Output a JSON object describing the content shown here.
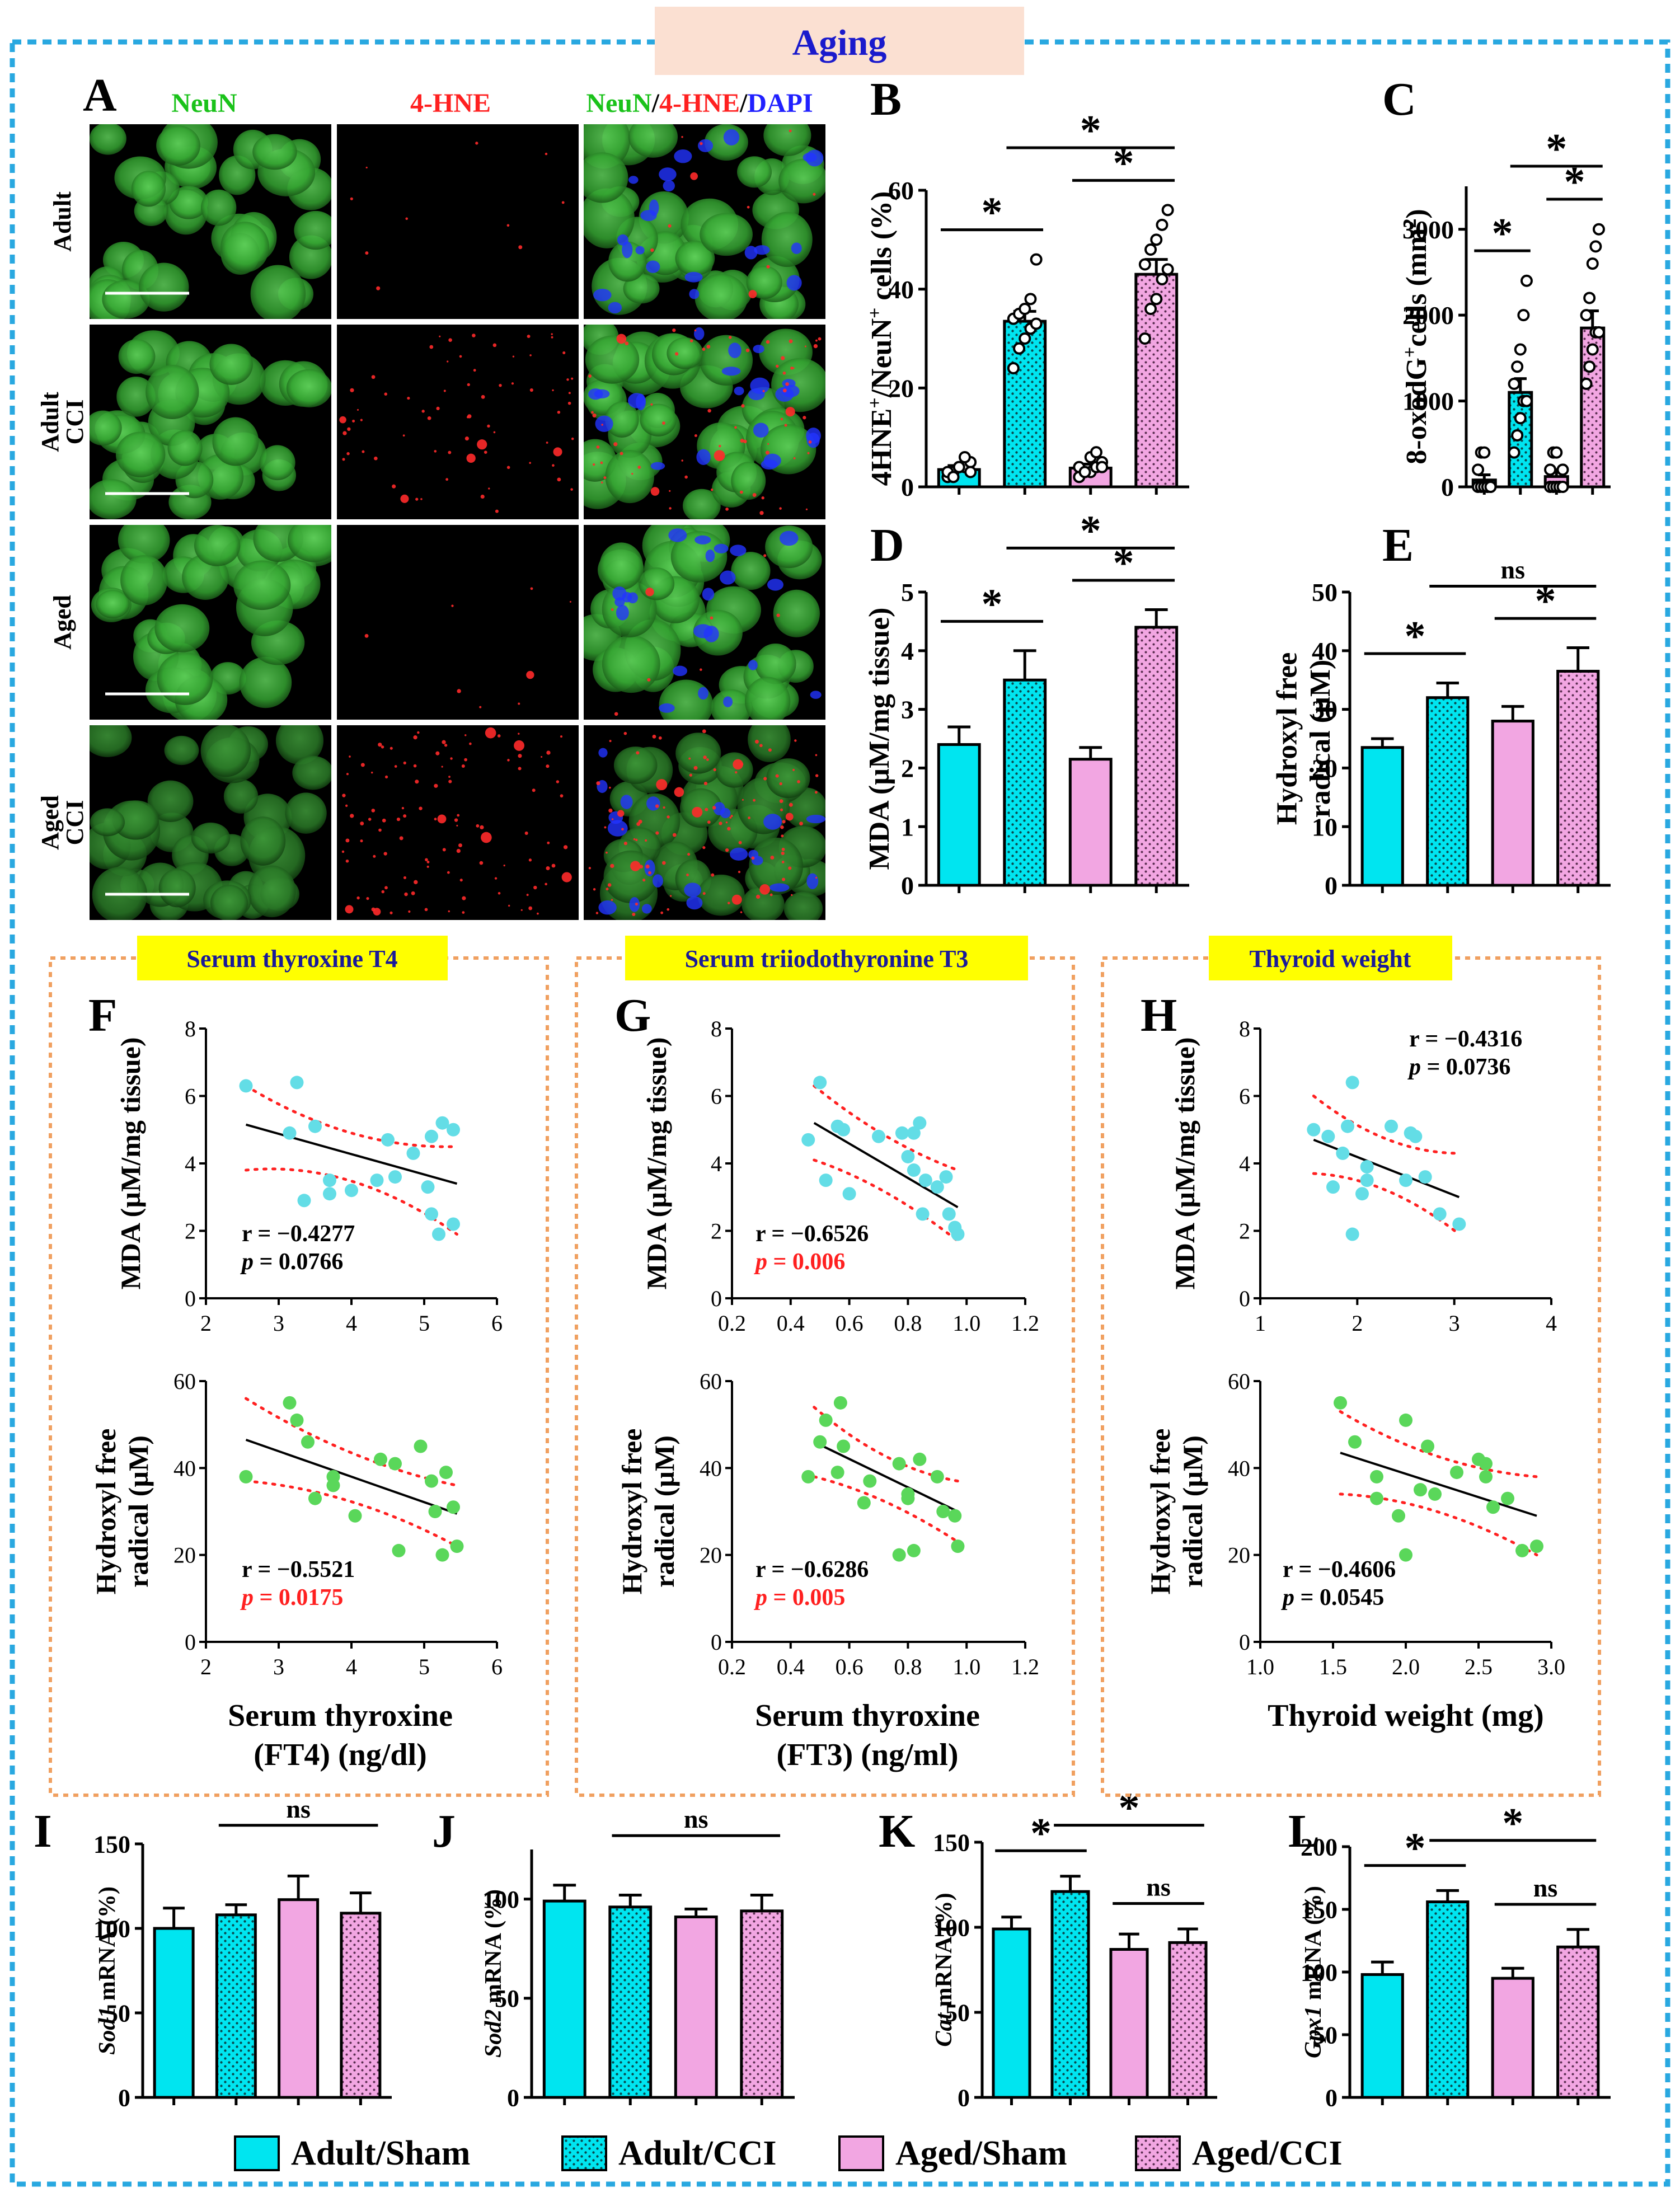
{
  "title": "Aging",
  "colors": {
    "frame": "#29a8e0",
    "title_bg": "#fbe0d2",
    "title_text": "#1a1acc",
    "cyan": "#00e5f0",
    "pink": "#f2a6e2",
    "green": "#1ac21a",
    "red": "#ff2020",
    "blue": "#2020ff",
    "orange": "#f0a060",
    "yellow": "#ffff00",
    "navy": "#1a1a99",
    "scatter_cyan": "#63dde6",
    "scatter_green": "#5ad75a",
    "sig_red": "#ff2020"
  },
  "micrograph": {
    "panel_label": "A",
    "columns": [
      "NeuN",
      "4-HNE",
      "NeuN/4-HNE/DAPI"
    ],
    "merged_parts": [
      "NeuN",
      "/",
      "4-HNE",
      "/",
      "DAPI"
    ],
    "rows": [
      "Adult",
      "Adult CCI",
      "Aged",
      "Aged CCI"
    ]
  },
  "legend": [
    "Adult/Sham",
    "Adult/CCI",
    "Aged/Sham",
    "Aged/CCI"
  ],
  "group_titles": [
    "Serum thyroxine T4",
    "Serum triiodothyronine T3",
    "Thyroid weight"
  ],
  "chart_data": [
    {
      "id": "B",
      "type": "bar",
      "ylabel_parts": [
        "4HNE",
        "+",
        "/NeuN",
        "+",
        " cells (%)"
      ],
      "categories": [
        "Adult/Sham",
        "Adult/CCI",
        "Aged/Sham",
        "Aged/CCI"
      ],
      "values": [
        3.5,
        33.5,
        3.8,
        43
      ],
      "errors": [
        0.8,
        2,
        0.8,
        3
      ],
      "ylim": [
        0,
        60
      ],
      "yticks": [
        0,
        20,
        40,
        60
      ],
      "points": [
        [
          2,
          3,
          4,
          4,
          5,
          3,
          2,
          4,
          6,
          3
        ],
        [
          24,
          28,
          30,
          32,
          33,
          34,
          35,
          36,
          38,
          46
        ],
        [
          2,
          3,
          3,
          4,
          5,
          4,
          3,
          6,
          7,
          4
        ],
        [
          30,
          36,
          38,
          42,
          44,
          45,
          48,
          50,
          53,
          56
        ]
      ],
      "sig": [
        {
          "from": 0,
          "to": 1,
          "label": "*"
        },
        {
          "from": 2,
          "to": 3,
          "label": "*"
        },
        {
          "from": 1,
          "to": 3,
          "label": "*"
        }
      ]
    },
    {
      "id": "C",
      "type": "bar",
      "ylabel_parts": [
        "8-oxodG",
        "+",
        "cells (mm",
        "2",
        ")"
      ],
      "categories": [
        "Adult/Sham",
        "Adult/CCI",
        "Aged/Sham",
        "Aged/CCI"
      ],
      "values": [
        80,
        1100,
        120,
        1850
      ],
      "errors": [
        60,
        160,
        80,
        200
      ],
      "ylim": [
        0,
        3500
      ],
      "yticks": [
        0,
        1000,
        2000,
        3000
      ],
      "points": [
        [
          0,
          0,
          0,
          0,
          0,
          200,
          400,
          400,
          0,
          0
        ],
        [
          400,
          600,
          800,
          1000,
          1000,
          1200,
          1400,
          1600,
          2000,
          2400
        ],
        [
          0,
          0,
          0,
          0,
          200,
          200,
          400,
          400,
          0,
          0
        ],
        [
          1200,
          1400,
          1600,
          1800,
          1800,
          2000,
          2200,
          2600,
          2800,
          3000
        ]
      ],
      "sig": [
        {
          "from": 0,
          "to": 1,
          "label": "*"
        },
        {
          "from": 2,
          "to": 3,
          "label": "*"
        },
        {
          "from": 1,
          "to": 3,
          "label": "*"
        }
      ]
    },
    {
      "id": "D",
      "type": "bar",
      "ylabel": "MDA (µM/mg tissue)",
      "categories": [
        "Adult/Sham",
        "Adult/CCI",
        "Aged/Sham",
        "Aged/CCI"
      ],
      "values": [
        2.4,
        3.5,
        2.15,
        4.4
      ],
      "errors": [
        0.3,
        0.5,
        0.2,
        0.3
      ],
      "ylim": [
        0,
        5
      ],
      "yticks": [
        0,
        1,
        2,
        3,
        4,
        5
      ],
      "sig": [
        {
          "from": 0,
          "to": 1,
          "label": "*"
        },
        {
          "from": 2,
          "to": 3,
          "label": "*"
        },
        {
          "from": 1,
          "to": 3,
          "label": "*"
        }
      ]
    },
    {
      "id": "E",
      "type": "bar",
      "ylabel_lines": [
        "Hydroxyl free",
        "radical (µM)"
      ],
      "categories": [
        "Adult/Sham",
        "Adult/CCI",
        "Aged/Sham",
        "Aged/CCI"
      ],
      "values": [
        23.5,
        32,
        28,
        36.5
      ],
      "errors": [
        1.5,
        2.5,
        2.5,
        4
      ],
      "ylim": [
        0,
        50
      ],
      "yticks": [
        0,
        10,
        20,
        30,
        40,
        50
      ],
      "sig": [
        {
          "from": 0,
          "to": 1,
          "label": "*"
        },
        {
          "from": 2,
          "to": 3,
          "label": "*"
        },
        {
          "from": 1,
          "to": 3,
          "label": "ns"
        }
      ]
    },
    {
      "id": "F",
      "type": "scatter",
      "ylabel": "MDA (µM/mg tissue)",
      "xlim": [
        2,
        6
      ],
      "xticks": [
        2,
        3,
        4,
        5,
        6
      ],
      "ylim": [
        0,
        8
      ],
      "yticks": [
        0,
        2,
        4,
        6,
        8
      ],
      "points": [
        [
          2.55,
          6.3
        ],
        [
          3.25,
          6.4
        ],
        [
          3.5,
          5.1
        ],
        [
          3.15,
          4.9
        ],
        [
          3.35,
          2.9
        ],
        [
          3.7,
          3.5
        ],
        [
          3.7,
          3.1
        ],
        [
          4.0,
          3.2
        ],
        [
          4.35,
          3.5
        ],
        [
          4.5,
          4.7
        ],
        [
          4.6,
          3.6
        ],
        [
          4.85,
          4.3
        ],
        [
          5.1,
          4.8
        ],
        [
          5.25,
          5.2
        ],
        [
          5.4,
          5.0
        ],
        [
          5.05,
          3.3
        ],
        [
          5.1,
          2.5
        ],
        [
          5.2,
          1.9
        ],
        [
          5.4,
          2.2
        ]
      ],
      "fit": [
        [
          2.55,
          5.15
        ],
        [
          5.45,
          3.4
        ]
      ],
      "ci_upper": [
        [
          2.55,
          6.3
        ],
        [
          4.0,
          4.4
        ],
        [
          5.45,
          4.5
        ]
      ],
      "ci_lower": [
        [
          2.55,
          3.8
        ],
        [
          4.0,
          4.1
        ],
        [
          5.45,
          1.9
        ]
      ],
      "r": "r = −0.4277",
      "p": "p = 0.0766",
      "p_sig": false
    },
    {
      "id": "F2",
      "type": "scatter",
      "ylabel_lines": [
        "Hydroxyl free",
        "radical (µM)"
      ],
      "xlabel_lines": [
        "Serum thyroxine",
        "(FT4) (ng/dl)"
      ],
      "xlim": [
        2,
        6
      ],
      "xticks": [
        2,
        3,
        4,
        5,
        6
      ],
      "ylim": [
        0,
        60
      ],
      "yticks": [
        0,
        20,
        40,
        60
      ],
      "points": [
        [
          2.55,
          38
        ],
        [
          3.15,
          55
        ],
        [
          3.25,
          51
        ],
        [
          3.4,
          46
        ],
        [
          3.5,
          33
        ],
        [
          3.75,
          36
        ],
        [
          3.75,
          38
        ],
        [
          4.05,
          29
        ],
        [
          4.4,
          42
        ],
        [
          4.6,
          41
        ],
        [
          4.65,
          21
        ],
        [
          4.95,
          45
        ],
        [
          5.1,
          37
        ],
        [
          5.15,
          30
        ],
        [
          5.3,
          39
        ],
        [
          5.4,
          31
        ],
        [
          5.25,
          20
        ],
        [
          5.45,
          22
        ]
      ],
      "fit": [
        [
          2.55,
          46.5
        ],
        [
          5.45,
          29.5
        ]
      ],
      "ci_upper": [
        [
          2.55,
          56
        ],
        [
          4.0,
          41
        ],
        [
          5.45,
          36
        ]
      ],
      "ci_lower": [
        [
          2.55,
          37
        ],
        [
          4.0,
          35
        ],
        [
          5.45,
          22
        ]
      ],
      "r": "r = −0.5521",
      "p": "p = 0.0175",
      "p_sig": true
    },
    {
      "id": "G",
      "type": "scatter",
      "ylabel": "MDA (µM/mg tissue)",
      "xlim": [
        0.2,
        1.2
      ],
      "xticks": [
        0.2,
        0.4,
        0.6,
        0.8,
        1.0,
        1.2
      ],
      "ylim": [
        0,
        8
      ],
      "yticks": [
        0,
        2,
        4,
        6,
        8
      ],
      "points": [
        [
          0.5,
          6.4
        ],
        [
          0.56,
          5.1
        ],
        [
          0.58,
          5.0
        ],
        [
          0.46,
          4.7
        ],
        [
          0.52,
          3.5
        ],
        [
          0.6,
          3.1
        ],
        [
          0.7,
          4.8
        ],
        [
          0.78,
          4.9
        ],
        [
          0.82,
          4.9
        ],
        [
          0.84,
          5.2
        ],
        [
          0.8,
          4.2
        ],
        [
          0.82,
          3.8
        ],
        [
          0.86,
          3.5
        ],
        [
          0.85,
          2.5
        ],
        [
          0.9,
          3.3
        ],
        [
          0.93,
          3.6
        ],
        [
          0.94,
          2.5
        ],
        [
          0.96,
          2.1
        ],
        [
          0.97,
          1.9
        ]
      ],
      "fit": [
        [
          0.48,
          5.2
        ],
        [
          0.97,
          2.7
        ]
      ],
      "ci_upper": [
        [
          0.48,
          6.3
        ],
        [
          0.72,
          4.6
        ],
        [
          0.97,
          3.8
        ]
      ],
      "ci_lower": [
        [
          0.48,
          4.1
        ],
        [
          0.72,
          3.4
        ],
        [
          0.97,
          1.7
        ]
      ],
      "r": "r = −0.6526",
      "p": "p = 0.006",
      "p_sig": true
    },
    {
      "id": "G2",
      "type": "scatter",
      "ylabel_lines": [
        "Hydroxyl free",
        "radical (µM)"
      ],
      "xlabel_lines": [
        "Serum thyroxine",
        "(FT3) (ng/ml)"
      ],
      "xlim": [
        0.2,
        1.2
      ],
      "xticks": [
        0.2,
        0.4,
        0.6,
        0.8,
        1.0,
        1.2
      ],
      "ylim": [
        0,
        60
      ],
      "yticks": [
        0,
        20,
        40,
        60
      ],
      "points": [
        [
          0.57,
          55
        ],
        [
          0.52,
          51
        ],
        [
          0.5,
          46
        ],
        [
          0.58,
          45
        ],
        [
          0.46,
          38
        ],
        [
          0.56,
          39
        ],
        [
          0.67,
          37
        ],
        [
          0.65,
          32
        ],
        [
          0.77,
          41
        ],
        [
          0.8,
          34
        ],
        [
          0.8,
          33
        ],
        [
          0.84,
          42
        ],
        [
          0.77,
          20
        ],
        [
          0.82,
          21
        ],
        [
          0.9,
          38
        ],
        [
          0.92,
          30
        ],
        [
          0.96,
          29
        ],
        [
          0.97,
          22
        ]
      ],
      "fit": [
        [
          0.48,
          46
        ],
        [
          0.97,
          30
        ]
      ],
      "ci_upper": [
        [
          0.48,
          54
        ],
        [
          0.72,
          40
        ],
        [
          0.97,
          37
        ]
      ],
      "ci_lower": [
        [
          0.48,
          38
        ],
        [
          0.72,
          34
        ],
        [
          0.97,
          23
        ]
      ],
      "r": "r = −0.6286",
      "p": "p = 0.005",
      "p_sig": true
    },
    {
      "id": "H",
      "type": "scatter",
      "ylabel": "MDA (µM/mg tissue)",
      "xlim": [
        1,
        4
      ],
      "xticks": [
        1,
        2,
        3,
        4
      ],
      "ylim": [
        0,
        8
      ],
      "yticks": [
        0,
        2,
        4,
        6,
        8
      ],
      "points": [
        [
          1.55,
          5.0
        ],
        [
          1.95,
          6.4
        ],
        [
          1.7,
          4.8
        ],
        [
          1.9,
          5.1
        ],
        [
          1.85,
          4.3
        ],
        [
          1.75,
          3.3
        ],
        [
          2.1,
          3.9
        ],
        [
          2.1,
          3.5
        ],
        [
          2.05,
          3.1
        ],
        [
          1.95,
          1.9
        ],
        [
          2.35,
          5.1
        ],
        [
          2.55,
          4.9
        ],
        [
          2.6,
          4.8
        ],
        [
          2.5,
          3.5
        ],
        [
          2.7,
          3.6
        ],
        [
          2.85,
          2.5
        ],
        [
          3.05,
          2.2
        ]
      ],
      "fit": [
        [
          1.55,
          4.7
        ],
        [
          3.05,
          3.0
        ]
      ],
      "ci_upper": [
        [
          1.55,
          6.0
        ],
        [
          2.3,
          4.3
        ],
        [
          3.05,
          4.3
        ]
      ],
      "ci_lower": [
        [
          1.55,
          3.7
        ],
        [
          2.3,
          3.6
        ],
        [
          3.05,
          1.9
        ]
      ],
      "r": "r = −0.4316",
      "p": "p = 0.0736",
      "p_sig": false
    },
    {
      "id": "H2",
      "type": "scatter",
      "ylabel_lines": [
        "Hydroxyl free",
        "radical (µM)"
      ],
      "xlabel": "Thyroid weight (mg)",
      "xlim": [
        1.0,
        3.0
      ],
      "xticks": [
        1.0,
        1.5,
        2.0,
        2.5,
        3.0
      ],
      "ylim": [
        0,
        60
      ],
      "yticks": [
        0,
        20,
        40,
        60
      ],
      "points": [
        [
          1.55,
          55
        ],
        [
          1.65,
          46
        ],
        [
          1.8,
          38
        ],
        [
          1.8,
          33
        ],
        [
          2.0,
          51
        ],
        [
          1.95,
          29
        ],
        [
          2.0,
          20
        ],
        [
          2.1,
          35
        ],
        [
          2.15,
          45
        ],
        [
          2.2,
          34
        ],
        [
          2.35,
          39
        ],
        [
          2.5,
          42
        ],
        [
          2.55,
          41
        ],
        [
          2.55,
          38
        ],
        [
          2.6,
          31
        ],
        [
          2.7,
          33
        ],
        [
          2.8,
          21
        ],
        [
          2.9,
          22
        ]
      ],
      "fit": [
        [
          1.55,
          43.5
        ],
        [
          2.9,
          29
        ]
      ],
      "ci_upper": [
        [
          1.55,
          53
        ],
        [
          2.2,
          40
        ],
        [
          2.9,
          38
        ]
      ],
      "ci_lower": [
        [
          1.55,
          34
        ],
        [
          2.2,
          33
        ],
        [
          2.9,
          20
        ]
      ],
      "r": "r = −0.4606",
      "p": "p = 0.0545",
      "p_sig": false
    },
    {
      "id": "I",
      "type": "bar",
      "gene": "Sod1",
      "ylabel_suffix": " mRNA (%)",
      "categories": [
        "Adult/Sham",
        "Adult/CCI",
        "Aged/Sham",
        "Aged/CCI"
      ],
      "values": [
        100,
        108,
        117,
        109
      ],
      "errors": [
        12,
        6,
        14,
        12
      ],
      "ylim": [
        0,
        150
      ],
      "yticks": [
        0,
        50,
        100,
        150
      ],
      "sig": [
        {
          "from": 1,
          "to": 3,
          "label": "ns"
        }
      ]
    },
    {
      "id": "J",
      "type": "bar",
      "gene": "Sod2",
      "ylabel_suffix": " mRNA (%)",
      "categories": [
        "Adult/Sham",
        "Adult/CCI",
        "Aged/Sham",
        "Aged/CCI"
      ],
      "values": [
        99,
        96,
        91,
        94
      ],
      "errors": [
        8,
        6,
        4,
        8
      ],
      "ylim": [
        0,
        125
      ],
      "yticks": [
        0,
        50,
        100
      ],
      "sig": [
        {
          "from": 1,
          "to": 3,
          "label": "ns"
        }
      ]
    },
    {
      "id": "K",
      "type": "bar",
      "gene": "Cat",
      "ylabel_suffix": " mRNA (%)",
      "categories": [
        "Adult/Sham",
        "Adult/CCI",
        "Aged/Sham",
        "Aged/CCI"
      ],
      "values": [
        99,
        121,
        87,
        91
      ],
      "errors": [
        7,
        9,
        9,
        8
      ],
      "ylim": [
        0,
        150
      ],
      "yticks": [
        0,
        50,
        100,
        150
      ],
      "sig": [
        {
          "from": 0,
          "to": 1,
          "label": "*"
        },
        {
          "from": 2,
          "to": 3,
          "label": "ns"
        },
        {
          "from": 1,
          "to": 3,
          "label": "*"
        }
      ]
    },
    {
      "id": "L",
      "type": "bar",
      "gene": "Gpx1",
      "ylabel_suffix": " mRNA (%)",
      "categories": [
        "Adult/Sham",
        "Adult/CCI",
        "Aged/Sham",
        "Aged/CCI"
      ],
      "values": [
        98,
        156,
        95,
        120
      ],
      "errors": [
        10,
        9,
        8,
        14
      ],
      "ylim": [
        0,
        200
      ],
      "yticks": [
        0,
        50,
        100,
        150,
        200
      ],
      "sig": [
        {
          "from": 0,
          "to": 1,
          "label": "*"
        },
        {
          "from": 2,
          "to": 3,
          "label": "ns"
        },
        {
          "from": 1,
          "to": 3,
          "label": "*"
        }
      ]
    }
  ]
}
